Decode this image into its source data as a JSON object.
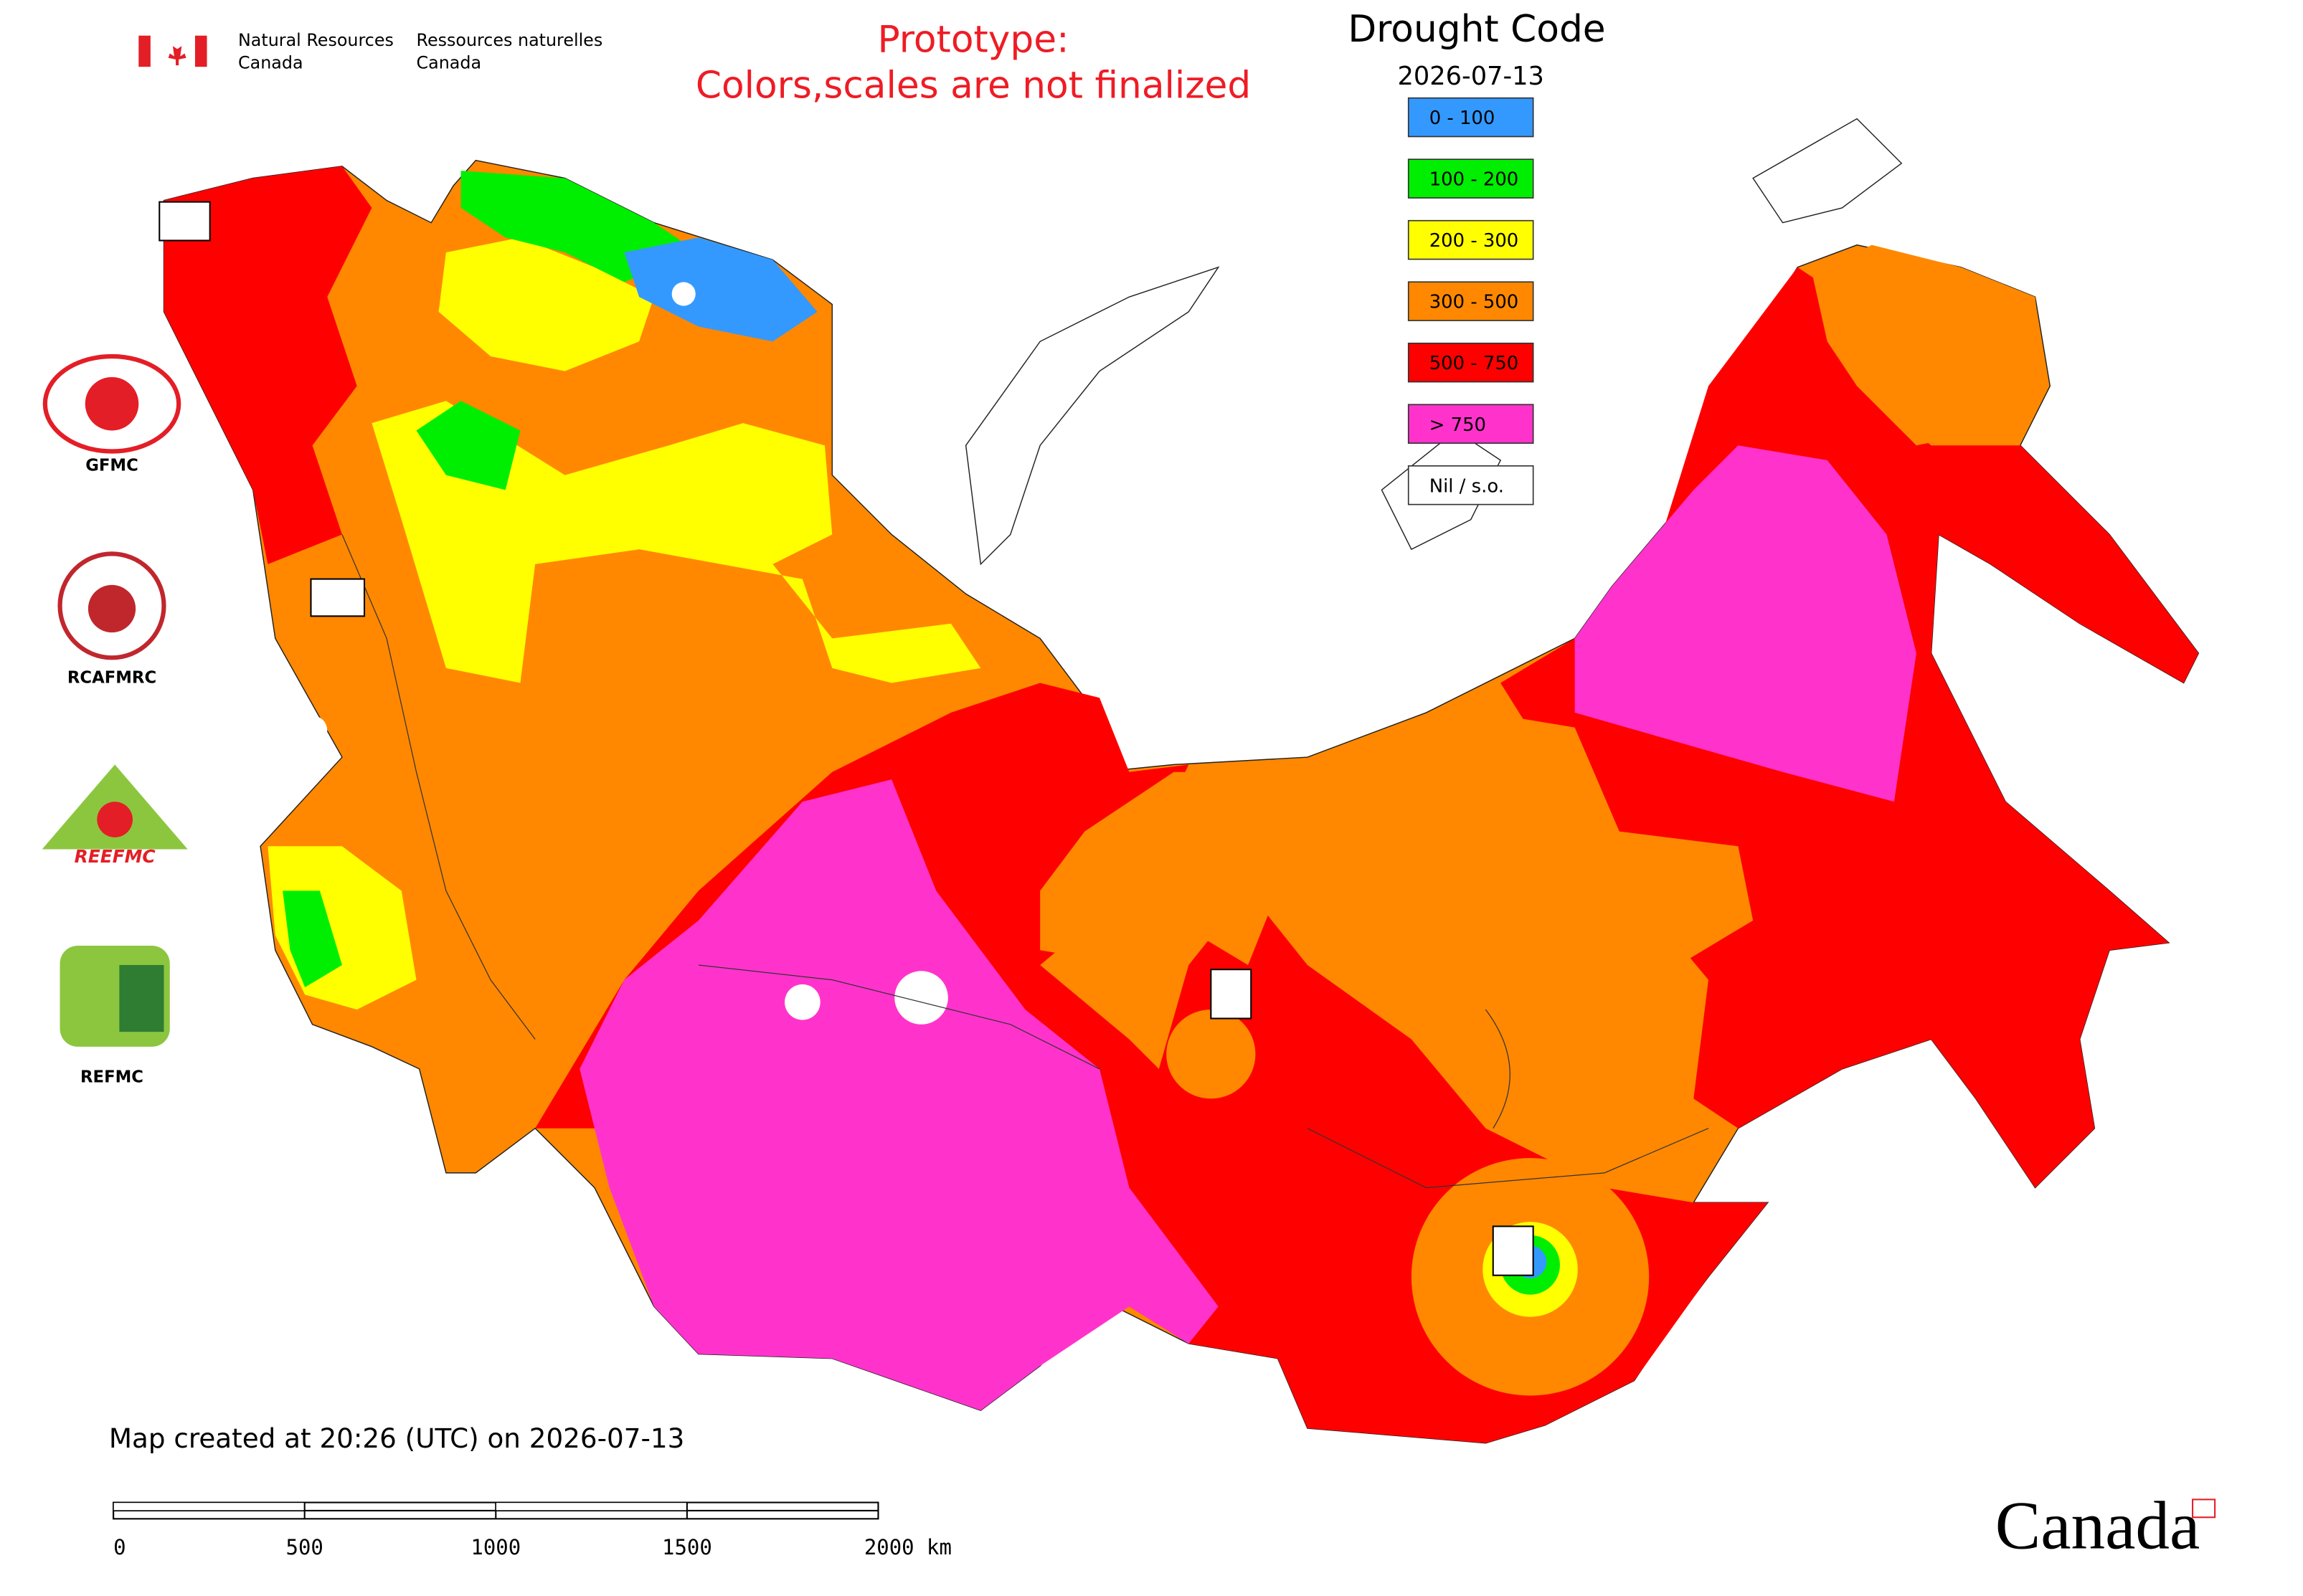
{
  "header": {
    "dept_en_line1": "Natural Resources",
    "dept_en_line2": "Canada",
    "dept_fr_line1": "Ressources naturelles",
    "dept_fr_line2": "Canada"
  },
  "notice": {
    "line1": "Prototype:",
    "line2": "Colors,scales are not finalized"
  },
  "legend": {
    "title": "Drought Code",
    "date": "2026-07-13",
    "items": [
      {
        "label": "0 - 100",
        "color": "#3399ff"
      },
      {
        "label": "100 - 200",
        "color": "#00ee00"
      },
      {
        "label": "200 - 300",
        "color": "#ffff00"
      },
      {
        "label": "300 - 500",
        "color": "#ff8800"
      },
      {
        "label": "500 - 750",
        "color": "#ff0000"
      },
      {
        "label": "> 750",
        "color": "#ff33cc"
      },
      {
        "label": "Nil / s.o.",
        "color": "#ffffff"
      }
    ]
  },
  "logos": [
    "GFMC",
    "RCAFMRC",
    "REEFMC",
    "REFMC"
  ],
  "footer": {
    "created": "Map created at 20:26 (UTC) on 2026-07-13",
    "wordmark": "Canada"
  },
  "scale_bar": {
    "labels": [
      "0",
      "500",
      "1000",
      "1500",
      "2000 km"
    ]
  }
}
